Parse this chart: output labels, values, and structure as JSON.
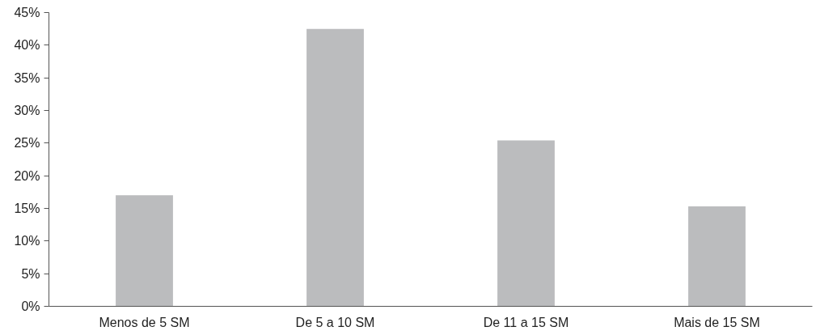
{
  "chart_data": {
    "type": "bar",
    "categories": [
      "Menos de 5 SM",
      "De 5 a 10 SM",
      "De 11 a 15 SM",
      "Mais de 15 SM"
    ],
    "values": [
      17.0,
      42.5,
      25.4,
      15.3
    ],
    "color": "#bbbcbe",
    "ylim": [
      0,
      45
    ],
    "yticks": [
      {
        "value": 0,
        "label": "0%"
      },
      {
        "value": 5,
        "label": "5%"
      },
      {
        "value": 10,
        "label": "10%"
      },
      {
        "value": 15,
        "label": "15%"
      },
      {
        "value": 20,
        "label": "20%"
      },
      {
        "value": 25,
        "label": "25%"
      },
      {
        "value": 30,
        "label": "30%"
      },
      {
        "value": 35,
        "label": "35%"
      },
      {
        "value": 40,
        "label": "40%"
      },
      {
        "value": 45,
        "label": "45%"
      }
    ],
    "grid": false
  }
}
